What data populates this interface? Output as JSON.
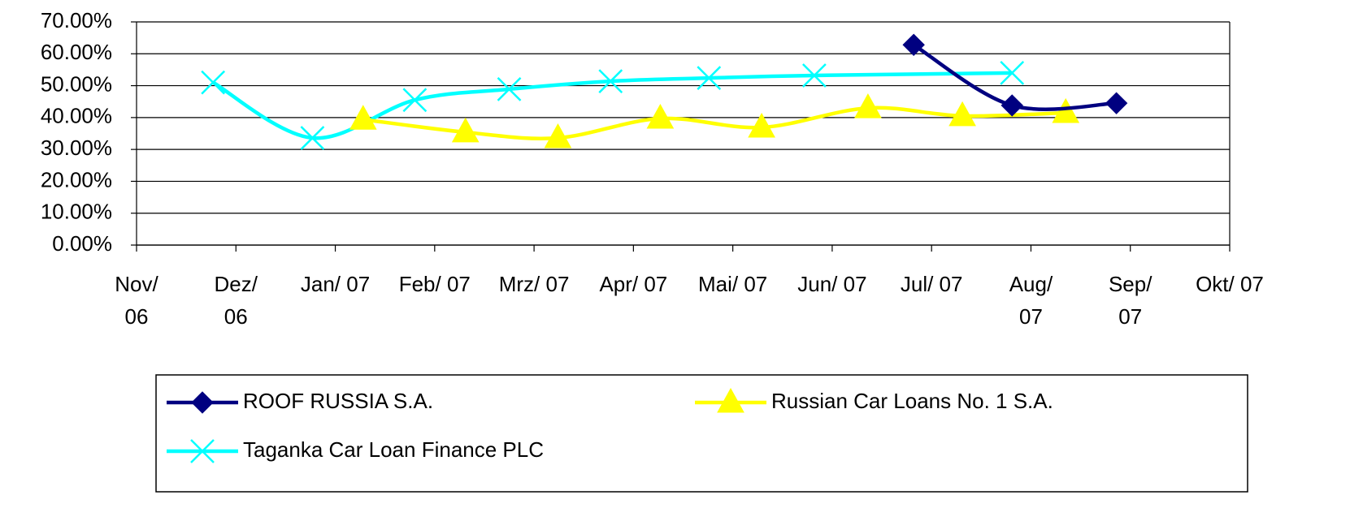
{
  "chart_data": {
    "type": "line",
    "xlim": [
      0,
      11
    ],
    "xticks": [
      {
        "value": 0,
        "label": "Nov/ 06"
      },
      {
        "value": 1,
        "label": "Dez/ 06"
      },
      {
        "value": 2,
        "label": "Jan/ 07"
      },
      {
        "value": 3,
        "label": "Feb/ 07"
      },
      {
        "value": 4,
        "label": "Mrz/ 07"
      },
      {
        "value": 5,
        "label": "Apr/ 07"
      },
      {
        "value": 6,
        "label": "Mai/ 07"
      },
      {
        "value": 7,
        "label": "Jun/ 07"
      },
      {
        "value": 8,
        "label": "Jul/ 07"
      },
      {
        "value": 9,
        "label": "Aug/ 07"
      },
      {
        "value": 10,
        "label": "Sep/ 07"
      },
      {
        "value": 11,
        "label": "Okt/ 07"
      }
    ],
    "ylim": [
      0,
      70
    ],
    "yticks": [
      {
        "value": 0,
        "label": "0.00%"
      },
      {
        "value": 10,
        "label": "10.00%"
      },
      {
        "value": 20,
        "label": "20.00%"
      },
      {
        "value": 30,
        "label": "30.00%"
      },
      {
        "value": 40,
        "label": "40.00%"
      },
      {
        "value": 50,
        "label": "50.00%"
      },
      {
        "value": 60,
        "label": "60.00%"
      },
      {
        "value": 70,
        "label": "70.00%"
      }
    ],
    "grid": true,
    "legend": "bottom",
    "series": [
      {
        "name": "ROOF RUSSIA S.A.",
        "color": "#000080",
        "marker": "diamond",
        "x": [
          7.82,
          8.81,
          9.86
        ],
        "values": [
          62.8,
          43.8,
          44.5
        ]
      },
      {
        "name": "Russian Car Loans No. 1 S.A.",
        "color": "#ffff00",
        "marker": "triangle",
        "x": [
          2.28,
          3.31,
          4.24,
          5.27,
          6.29,
          7.36,
          8.31,
          9.35
        ],
        "values": [
          39.4,
          35.4,
          33.6,
          39.7,
          36.9,
          43,
          40.5,
          41.5
        ]
      },
      {
        "name": "Taganka Car Loan Finance PLC",
        "color": "#00ffff",
        "marker": "x",
        "x": [
          0.77,
          1.77,
          2.8,
          3.75,
          4.77,
          5.76,
          6.82,
          8.81
        ],
        "values": [
          51,
          33.6,
          45.5,
          48.9,
          51.4,
          52.4,
          53.2,
          54
        ]
      }
    ]
  }
}
